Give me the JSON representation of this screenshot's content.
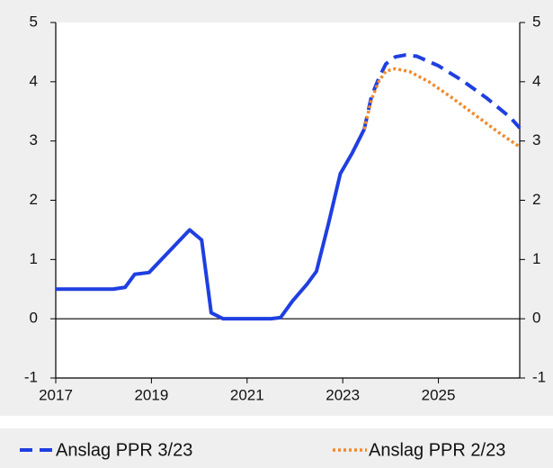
{
  "chart_data": {
    "type": "line",
    "xlim": [
      2017,
      2026.7
    ],
    "xticks": [
      2017,
      2019,
      2021,
      2023,
      2025
    ],
    "ylim": [
      -1,
      5
    ],
    "yticks": [
      -1,
      0,
      1,
      2,
      3,
      4,
      5
    ],
    "series": [
      {
        "color": "#1f3fe0",
        "style": "solid",
        "x": [
          2017.0,
          2018.2,
          2018.45,
          2018.65,
          2018.95,
          2019.8,
          2020.05,
          2020.25,
          2020.5,
          2021.5,
          2021.7,
          2021.95,
          2022.25,
          2022.45,
          2022.7,
          2022.95,
          2023.2,
          2023.45
        ],
        "values": [
          0.5,
          0.5,
          0.53,
          0.75,
          0.78,
          1.5,
          1.33,
          0.1,
          0.0,
          0.0,
          0.02,
          0.3,
          0.58,
          0.8,
          1.6,
          2.45,
          2.8,
          3.2
        ]
      },
      {
        "name": "Anslag PPR 3/23",
        "color": "#1f3fe0",
        "style": "dashed",
        "x": [
          2023.45,
          2023.6,
          2023.75,
          2023.9,
          2024.1,
          2024.3,
          2024.55,
          2025.0,
          2025.5,
          2026.0,
          2026.5,
          2026.7
        ],
        "values": [
          3.2,
          3.75,
          4.05,
          4.3,
          4.42,
          4.45,
          4.43,
          4.27,
          4.02,
          3.73,
          3.4,
          3.22
        ]
      },
      {
        "name": "Anslag PPR 2/23",
        "color": "#f08a2c",
        "style": "dotted",
        "x": [
          2023.45,
          2023.6,
          2023.75,
          2023.9,
          2024.1,
          2024.4,
          2024.8,
          2025.25,
          2025.75,
          2026.25,
          2026.7
        ],
        "values": [
          3.2,
          3.7,
          4.0,
          4.18,
          4.22,
          4.17,
          4.0,
          3.75,
          3.45,
          3.15,
          2.9
        ]
      }
    ]
  }
}
